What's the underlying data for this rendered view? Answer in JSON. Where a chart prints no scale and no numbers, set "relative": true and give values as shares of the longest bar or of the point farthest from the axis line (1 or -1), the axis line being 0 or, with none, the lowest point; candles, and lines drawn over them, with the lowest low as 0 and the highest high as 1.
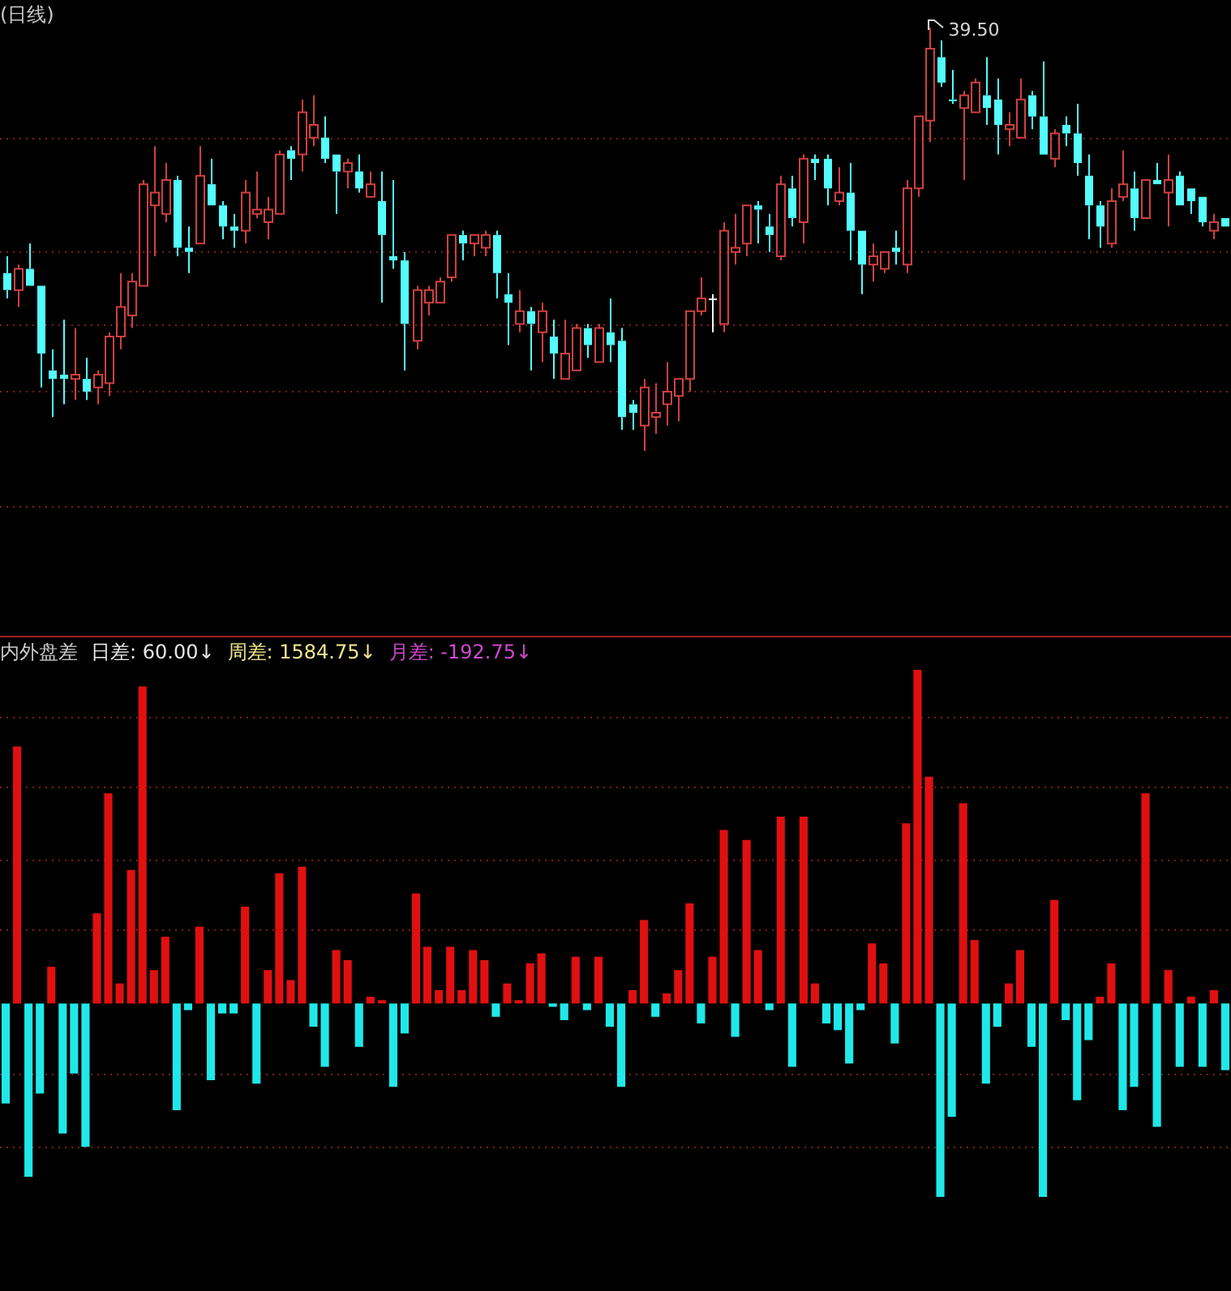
{
  "chart_data": [
    {
      "type": "candlestick",
      "title": "(日线)",
      "relative": true,
      "legend": false,
      "annotations": [
        "39.50"
      ],
      "ref_lines": [
        {
          "axis": "y",
          "value": 0.74,
          "color": "#7a2020",
          "line_style": "dotted"
        },
        {
          "axis": "y",
          "value": 0.47,
          "color": "#7a2020",
          "line_style": "dotted"
        },
        {
          "axis": "y",
          "value": 0.3,
          "color": "#7a2020",
          "line_style": "dotted"
        },
        {
          "axis": "y",
          "value": 0.14,
          "color": "#7a2020",
          "line_style": "dotted"
        },
        {
          "axis": "y",
          "value": -0.13,
          "color": "#7a2020",
          "line_style": "dotted"
        }
      ],
      "categories": [
        null,
        null,
        null,
        null,
        null,
        null,
        null,
        null,
        null,
        null,
        null,
        null,
        null,
        null,
        null,
        null,
        null,
        null,
        null,
        null,
        null,
        null,
        null,
        null,
        null,
        null,
        null,
        null,
        null,
        null,
        null,
        null,
        null,
        null,
        null,
        null,
        null,
        null,
        null,
        null,
        null,
        null,
        null,
        null,
        null,
        null,
        null,
        null,
        null,
        null,
        null,
        null,
        null,
        null,
        null,
        null,
        null,
        null,
        null,
        null,
        null,
        null,
        null,
        null,
        null,
        null,
        null,
        null,
        null,
        null,
        null,
        null,
        null,
        null,
        null,
        null,
        null,
        null,
        null,
        null,
        null,
        null,
        null,
        null,
        null,
        null,
        null,
        null,
        null,
        null,
        null,
        null,
        null,
        null,
        null,
        null,
        null,
        null,
        null,
        null,
        null,
        null,
        null,
        null,
        null,
        null,
        null,
        null
      ],
      "ohlc": [
        [
          0.42,
          0.46,
          0.36,
          0.38
        ],
        [
          0.38,
          0.44,
          0.34,
          0.43
        ],
        [
          0.43,
          0.49,
          0.39,
          0.39
        ],
        [
          0.39,
          0.39,
          0.15,
          0.23
        ],
        [
          0.19,
          0.24,
          0.08,
          0.17
        ],
        [
          0.18,
          0.31,
          0.11,
          0.17
        ],
        [
          0.17,
          0.29,
          0.12,
          0.18
        ],
        [
          0.17,
          0.22,
          0.12,
          0.14
        ],
        [
          0.15,
          0.19,
          0.11,
          0.18
        ],
        [
          0.16,
          0.28,
          0.13,
          0.27
        ],
        [
          0.27,
          0.42,
          0.24,
          0.34
        ],
        [
          0.32,
          0.42,
          0.29,
          0.4
        ],
        [
          0.39,
          0.64,
          0.39,
          0.63
        ],
        [
          0.58,
          0.72,
          0.46,
          0.61
        ],
        [
          0.56,
          0.68,
          0.54,
          0.64
        ],
        [
          0.64,
          0.65,
          0.46,
          0.48
        ],
        [
          0.48,
          0.53,
          0.42,
          0.47
        ],
        [
          0.49,
          0.72,
          0.49,
          0.65
        ],
        [
          0.63,
          0.69,
          0.58,
          0.58
        ],
        [
          0.58,
          0.59,
          0.5,
          0.53
        ],
        [
          0.53,
          0.56,
          0.48,
          0.52
        ],
        [
          0.52,
          0.64,
          0.49,
          0.61
        ],
        [
          0.56,
          0.66,
          0.55,
          0.57
        ],
        [
          0.54,
          0.6,
          0.5,
          0.57
        ],
        [
          0.56,
          0.71,
          0.56,
          0.7
        ],
        [
          0.71,
          0.72,
          0.64,
          0.69
        ],
        [
          0.7,
          0.83,
          0.66,
          0.8
        ],
        [
          0.74,
          0.84,
          0.72,
          0.77
        ],
        [
          0.74,
          0.79,
          0.68,
          0.69
        ],
        [
          0.7,
          0.7,
          0.56,
          0.66
        ],
        [
          0.66,
          0.69,
          0.62,
          0.68
        ],
        [
          0.66,
          0.7,
          0.61,
          0.62
        ],
        [
          0.6,
          0.66,
          0.6,
          0.63
        ],
        [
          0.59,
          0.66,
          0.35,
          0.51
        ],
        [
          0.46,
          0.64,
          0.43,
          0.45
        ],
        [
          0.45,
          0.47,
          0.19,
          0.3
        ],
        [
          0.26,
          0.39,
          0.24,
          0.38
        ],
        [
          0.35,
          0.39,
          0.32,
          0.38
        ],
        [
          0.35,
          0.41,
          0.35,
          0.4
        ],
        [
          0.41,
          0.51,
          0.4,
          0.51
        ],
        [
          0.51,
          0.52,
          0.45,
          0.49
        ],
        [
          0.49,
          0.51,
          0.46,
          0.51
        ],
        [
          0.48,
          0.52,
          0.46,
          0.51
        ],
        [
          0.51,
          0.52,
          0.36,
          0.42
        ],
        [
          0.37,
          0.42,
          0.25,
          0.35
        ],
        [
          0.3,
          0.38,
          0.28,
          0.33
        ],
        [
          0.33,
          0.34,
          0.19,
          0.3
        ],
        [
          0.28,
          0.35,
          0.21,
          0.33
        ],
        [
          0.27,
          0.31,
          0.17,
          0.23
        ],
        [
          0.17,
          0.31,
          0.17,
          0.23
        ],
        [
          0.19,
          0.3,
          0.19,
          0.29
        ],
        [
          0.29,
          0.3,
          0.22,
          0.25
        ],
        [
          0.21,
          0.3,
          0.21,
          0.29
        ],
        [
          0.28,
          0.36,
          0.21,
          0.25
        ],
        [
          0.26,
          0.29,
          0.05,
          0.08
        ],
        [
          0.11,
          0.12,
          0.05,
          0.09
        ],
        [
          0.06,
          0.17,
          0,
          0.15
        ],
        [
          0.08,
          0.16,
          0.04,
          0.09
        ],
        [
          0.11,
          0.21,
          0.06,
          0.14
        ],
        [
          0.13,
          0.17,
          0.07,
          0.17
        ],
        [
          0.17,
          0.33,
          0.14,
          0.33
        ],
        [
          0.33,
          0.41,
          0.32,
          0.36
        ],
        [
          0.36,
          0.37,
          0.28,
          0.36
        ],
        [
          0.3,
          0.54,
          0.28,
          0.52
        ],
        [
          0.47,
          0.56,
          0.44,
          0.48
        ],
        [
          0.49,
          0.58,
          0.46,
          0.58
        ],
        [
          0.58,
          0.59,
          0.49,
          0.57
        ],
        [
          0.53,
          0.56,
          0.47,
          0.51
        ],
        [
          0.46,
          0.65,
          0.45,
          0.63
        ],
        [
          0.62,
          0.65,
          0.53,
          0.55
        ],
        [
          0.54,
          0.7,
          0.49,
          0.69
        ],
        [
          0.69,
          0.7,
          0.64,
          0.68
        ],
        [
          0.69,
          0.7,
          0.58,
          0.62
        ],
        [
          0.59,
          0.67,
          0.58,
          0.61
        ],
        [
          0.61,
          0.68,
          0.45,
          0.52
        ],
        [
          0.52,
          0.52,
          0.37,
          0.44
        ],
        [
          0.44,
          0.49,
          0.4,
          0.46
        ],
        [
          0.43,
          0.47,
          0.42,
          0.47
        ],
        [
          0.48,
          0.52,
          0.44,
          0.47
        ],
        [
          0.44,
          0.64,
          0.42,
          0.62
        ],
        [
          0.62,
          0.79,
          0.6,
          0.79
        ],
        [
          0.78,
          1,
          0.73,
          0.95
        ],
        [
          0.93,
          0.97,
          0.86,
          0.87
        ],
        [
          0.83,
          0.9,
          0.82,
          0.83
        ],
        [
          0.81,
          0.85,
          0.64,
          0.84
        ],
        [
          0.8,
          0.88,
          0.8,
          0.87
        ],
        [
          0.84,
          0.93,
          0.77,
          0.81
        ],
        [
          0.83,
          0.88,
          0.7,
          0.77
        ],
        [
          0.76,
          0.8,
          0.72,
          0.77
        ],
        [
          0.74,
          0.88,
          0.74,
          0.83
        ],
        [
          0.84,
          0.85,
          0.76,
          0.79
        ],
        [
          0.79,
          0.92,
          0.7,
          0.7
        ],
        [
          0.69,
          0.76,
          0.67,
          0.75
        ],
        [
          0.77,
          0.79,
          0.72,
          0.75
        ],
        [
          0.75,
          0.82,
          0.65,
          0.68
        ],
        [
          0.65,
          0.7,
          0.5,
          0.58
        ],
        [
          0.58,
          0.59,
          0.48,
          0.53
        ],
        [
          0.49,
          0.62,
          0.48,
          0.59
        ],
        [
          0.6,
          0.71,
          0.59,
          0.63
        ],
        [
          0.62,
          0.66,
          0.52,
          0.55
        ],
        [
          0.55,
          0.64,
          0.55,
          0.64
        ],
        [
          0.64,
          0.68,
          0.63,
          0.63
        ],
        [
          0.61,
          0.7,
          0.53,
          0.64
        ],
        [
          0.65,
          0.66,
          0.58,
          0.58
        ],
        [
          0.62,
          0.62,
          0.56,
          0.59
        ],
        [
          0.6,
          0.6,
          0.53,
          0.54
        ],
        [
          0.52,
          0.56,
          0.5,
          0.54
        ],
        [
          0.55,
          0.55,
          0.53,
          0.53
        ]
      ],
      "colors": [
        "#54fcfc",
        "#d04040",
        "#54fcfc",
        "#54fcfc",
        "#54fcfc",
        "#54fcfc",
        "#d04040",
        "#54fcfc",
        "#d04040",
        "#d04040",
        "#d04040",
        "#d04040",
        "#d04040",
        "#d04040",
        "#d04040",
        "#54fcfc",
        "#54fcfc",
        "#d04040",
        "#54fcfc",
        "#54fcfc",
        "#54fcfc",
        "#d04040",
        "#d04040",
        "#d04040",
        "#d04040",
        "#54fcfc",
        "#d04040",
        "#d04040",
        "#54fcfc",
        "#54fcfc",
        "#d04040",
        "#54fcfc",
        "#d04040",
        "#54fcfc",
        "#54fcfc",
        "#54fcfc",
        "#d04040",
        "#d04040",
        "#d04040",
        "#d04040",
        "#54fcfc",
        "#d04040",
        "#d04040",
        "#54fcfc",
        "#54fcfc",
        "#d04040",
        "#54fcfc",
        "#d04040",
        "#54fcfc",
        "#d04040",
        "#d04040",
        "#54fcfc",
        "#d04040",
        "#54fcfc",
        "#54fcfc",
        "#54fcfc",
        "#d04040",
        "#d04040",
        "#d04040",
        "#d04040",
        "#d04040",
        "#d04040",
        "#ffffff",
        "#d04040",
        "#d04040",
        "#d04040",
        "#54fcfc",
        "#54fcfc",
        "#d04040",
        "#54fcfc",
        "#d04040",
        "#54fcfc",
        "#54fcfc",
        "#d04040",
        "#54fcfc",
        "#54fcfc",
        "#d04040",
        "#d04040",
        "#54fcfc",
        "#d04040",
        "#d04040",
        "#d04040",
        "#54fcfc",
        "#54fcfc",
        "#d04040",
        "#d04040",
        "#54fcfc",
        "#54fcfc",
        "#d04040",
        "#d04040",
        "#54fcfc",
        "#54fcfc",
        "#d04040",
        "#54fcfc",
        "#54fcfc",
        "#54fcfc",
        "#54fcfc",
        "#d04040",
        "#d04040",
        "#54fcfc",
        "#d04040",
        "#54fcfc",
        "#d04040",
        "#54fcfc",
        "#54fcfc",
        "#54fcfc",
        "#d04040",
        "#54fcfc"
      ]
    },
    {
      "type": "bar",
      "title": "内外盘差",
      "relative": true,
      "legend": false,
      "ref_lines": [
        {
          "axis": "y",
          "value": 0.86,
          "color": "#7a2020",
          "line_style": "dotted"
        },
        {
          "axis": "y",
          "value": 0.65,
          "color": "#7a2020",
          "line_style": "dotted"
        },
        {
          "axis": "y",
          "value": 0.43,
          "color": "#7a2020",
          "line_style": "dotted"
        },
        {
          "axis": "y",
          "value": 0.22,
          "color": "#7a2020",
          "line_style": "dotted"
        },
        {
          "axis": "y",
          "value": -0.21,
          "color": "#7a2020",
          "line_style": "dotted"
        },
        {
          "axis": "y",
          "value": -0.43,
          "color": "#7a2020",
          "line_style": "dotted"
        }
      ],
      "annotations": [
        "日差: 60.00↓",
        "周差: 1584.75↓",
        "月差: -192.75↓"
      ],
      "categories": [
        null,
        null,
        null,
        null,
        null,
        null,
        null,
        null,
        null,
        null,
        null,
        null,
        null,
        null,
        null,
        null,
        null,
        null,
        null,
        null,
        null,
        null,
        null,
        null,
        null,
        null,
        null,
        null,
        null,
        null,
        null,
        null,
        null,
        null,
        null,
        null,
        null,
        null,
        null,
        null,
        null,
        null,
        null,
        null,
        null,
        null,
        null,
        null,
        null,
        null,
        null,
        null,
        null,
        null,
        null,
        null,
        null,
        null,
        null,
        null,
        null,
        null,
        null,
        null,
        null,
        null,
        null,
        null,
        null,
        null,
        null,
        null,
        null,
        null,
        null,
        null,
        null,
        null,
        null,
        null,
        null,
        null,
        null,
        null,
        null,
        null,
        null,
        null,
        null,
        null,
        null,
        null,
        null,
        null,
        null,
        null,
        null,
        null,
        null,
        null,
        null,
        null,
        null,
        null,
        null,
        null,
        null,
        null
      ],
      "values": [
        -0.3,
        0.77,
        -0.52,
        -0.27,
        0.11,
        -0.39,
        -0.21,
        -0.43,
        0.27,
        0.63,
        0.06,
        0.4,
        0.95,
        0.1,
        0.2,
        -0.32,
        -0.02,
        0.23,
        -0.23,
        -0.03,
        -0.03,
        0.29,
        -0.24,
        0.1,
        0.39,
        0.07,
        0.41,
        -0.07,
        -0.19,
        0.16,
        0.13,
        -0.13,
        0.02,
        0.01,
        -0.25,
        -0.09,
        0.33,
        0.17,
        0.04,
        0.17,
        0.04,
        0.16,
        0.13,
        -0.04,
        0.06,
        0.01,
        0.12,
        0.15,
        -0.01,
        -0.05,
        0.14,
        -0.02,
        0.14,
        -0.07,
        -0.25,
        0.04,
        0.25,
        -0.04,
        0.03,
        0.1,
        0.3,
        -0.06,
        0.14,
        0.52,
        -0.1,
        0.49,
        0.16,
        -0.02,
        0.56,
        -0.19,
        0.56,
        0.06,
        -0.06,
        -0.08,
        -0.18,
        -0.02,
        0.18,
        0.12,
        -0.12,
        0.54,
        1,
        0.68,
        -0.58,
        -0.34,
        0.6,
        0.19,
        -0.24,
        -0.07,
        0.06,
        0.16,
        -0.13,
        -0.58,
        0.31,
        -0.05,
        -0.29,
        -0.11,
        0.02,
        0.12,
        -0.32,
        -0.25,
        0.63,
        -0.37,
        0.1,
        -0.19,
        0.02,
        -0.19,
        0.04,
        -0.2
      ],
      "colors": [
        "#20e8e8",
        "#e01010",
        "#20e8e8",
        "#20e8e8",
        "#e01010",
        "#20e8e8",
        "#20e8e8",
        "#20e8e8",
        "#e01010",
        "#e01010",
        "#e01010",
        "#e01010",
        "#e01010",
        "#e01010",
        "#e01010",
        "#20e8e8",
        "#20e8e8",
        "#e01010",
        "#20e8e8",
        "#20e8e8",
        "#20e8e8",
        "#e01010",
        "#20e8e8",
        "#e01010",
        "#e01010",
        "#e01010",
        "#e01010",
        "#20e8e8",
        "#20e8e8",
        "#e01010",
        "#e01010",
        "#20e8e8",
        "#e01010",
        "#e01010",
        "#20e8e8",
        "#20e8e8",
        "#e01010",
        "#e01010",
        "#e01010",
        "#e01010",
        "#e01010",
        "#e01010",
        "#e01010",
        "#20e8e8",
        "#e01010",
        "#e01010",
        "#e01010",
        "#e01010",
        "#20e8e8",
        "#20e8e8",
        "#e01010",
        "#20e8e8",
        "#e01010",
        "#20e8e8",
        "#20e8e8",
        "#e01010",
        "#e01010",
        "#20e8e8",
        "#e01010",
        "#e01010",
        "#e01010",
        "#20e8e8",
        "#e01010",
        "#e01010",
        "#20e8e8",
        "#e01010",
        "#e01010",
        "#20e8e8",
        "#e01010",
        "#20e8e8",
        "#e01010",
        "#e01010",
        "#20e8e8",
        "#20e8e8",
        "#20e8e8",
        "#20e8e8",
        "#e01010",
        "#e01010",
        "#20e8e8",
        "#e01010",
        "#e01010",
        "#e01010",
        "#20e8e8",
        "#20e8e8",
        "#e01010",
        "#e01010",
        "#20e8e8",
        "#20e8e8",
        "#e01010",
        "#e01010",
        "#20e8e8",
        "#20e8e8",
        "#e01010",
        "#20e8e8",
        "#20e8e8",
        "#20e8e8",
        "#e01010",
        "#e01010",
        "#20e8e8",
        "#20e8e8",
        "#e01010",
        "#20e8e8",
        "#e01010",
        "#20e8e8",
        "#e01010",
        "#20e8e8",
        "#e01010",
        "#20e8e8"
      ]
    }
  ]
}
